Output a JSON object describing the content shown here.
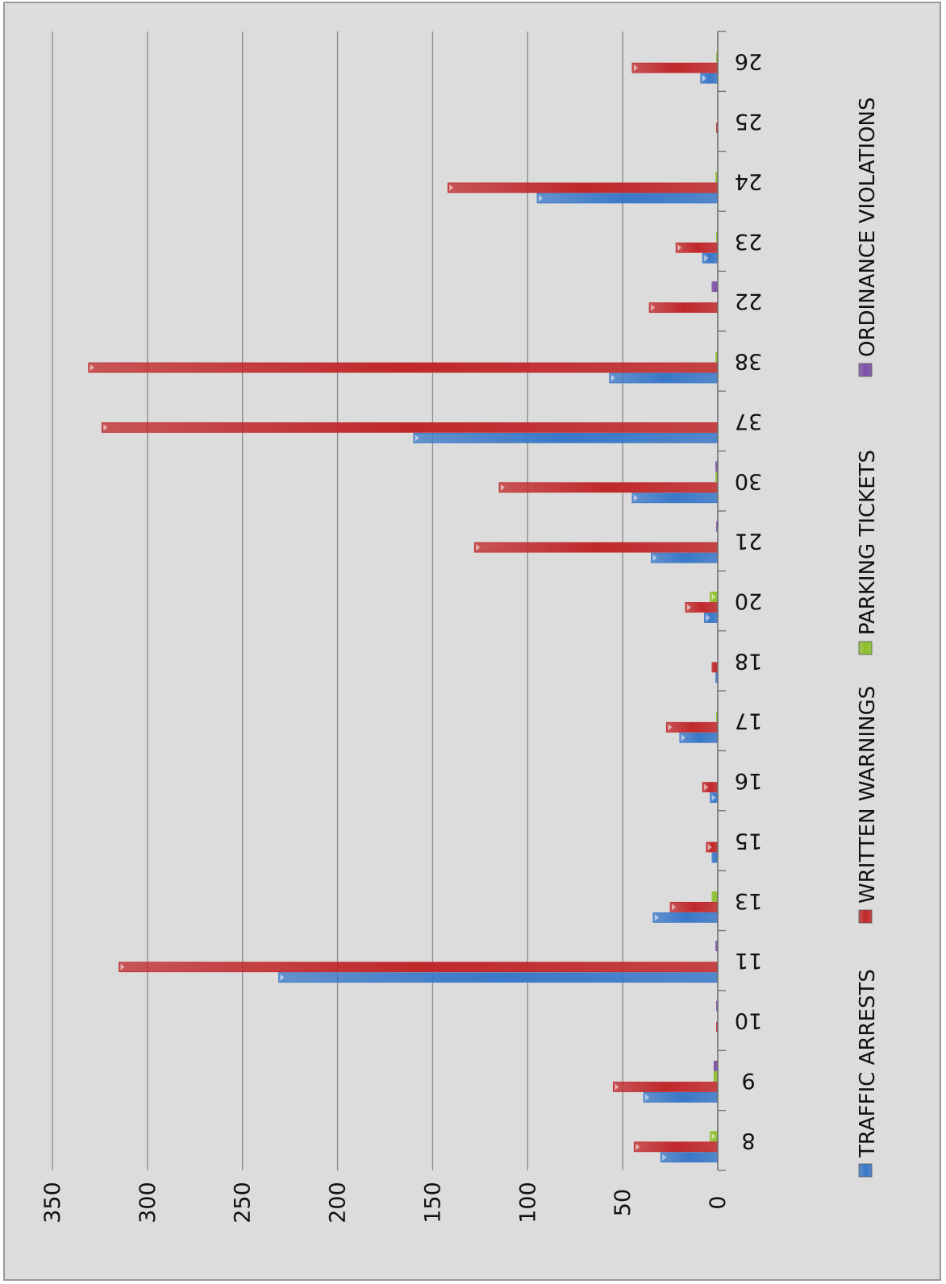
{
  "chart_data": {
    "type": "bar",
    "orientation": "vertical bars, image rotated 90 degrees clockwise",
    "categories": [
      "8",
      "9",
      "10",
      "11",
      "13",
      "15",
      "16",
      "17",
      "18",
      "20",
      "21",
      "30",
      "37",
      "38",
      "22",
      "23",
      "24",
      "25",
      "26"
    ],
    "series": [
      {
        "name": "TRAFFIC ARRESTS",
        "color": "#3a78c8",
        "values": [
          30,
          39,
          0,
          231,
          34,
          3,
          4,
          20,
          1,
          7,
          35,
          45,
          160,
          57,
          0,
          8,
          95,
          0,
          9
        ]
      },
      {
        "name": "WRITTEN WARNINGS",
        "color": "#c0282a",
        "values": [
          44,
          55,
          0.5,
          315,
          25,
          6,
          8,
          27,
          3,
          17,
          128,
          115,
          324,
          331,
          36,
          22,
          142,
          0.5,
          45
        ]
      },
      {
        "name": "PARKING TICKETS",
        "color": "#8cbf2a",
        "values": [
          4,
          2,
          0,
          0,
          3,
          0,
          0,
          0.5,
          0,
          4,
          0,
          1,
          0,
          1,
          0,
          0.5,
          1,
          0,
          0.5
        ]
      },
      {
        "name": "ORDINANCE VIOLATIONS",
        "color": "#7d4fa8",
        "values": [
          0,
          2,
          0.5,
          1,
          0,
          0,
          0,
          0,
          0,
          0,
          0.5,
          1,
          0,
          0,
          3,
          0,
          0,
          0,
          0
        ]
      }
    ],
    "y_ticks": [
      "0",
      "50",
      "100",
      "150",
      "200",
      "250",
      "300",
      "350"
    ],
    "ylim": [
      0,
      350
    ],
    "grid": true,
    "legend": "bottom",
    "title": "",
    "xlabel": "",
    "ylabel": ""
  }
}
